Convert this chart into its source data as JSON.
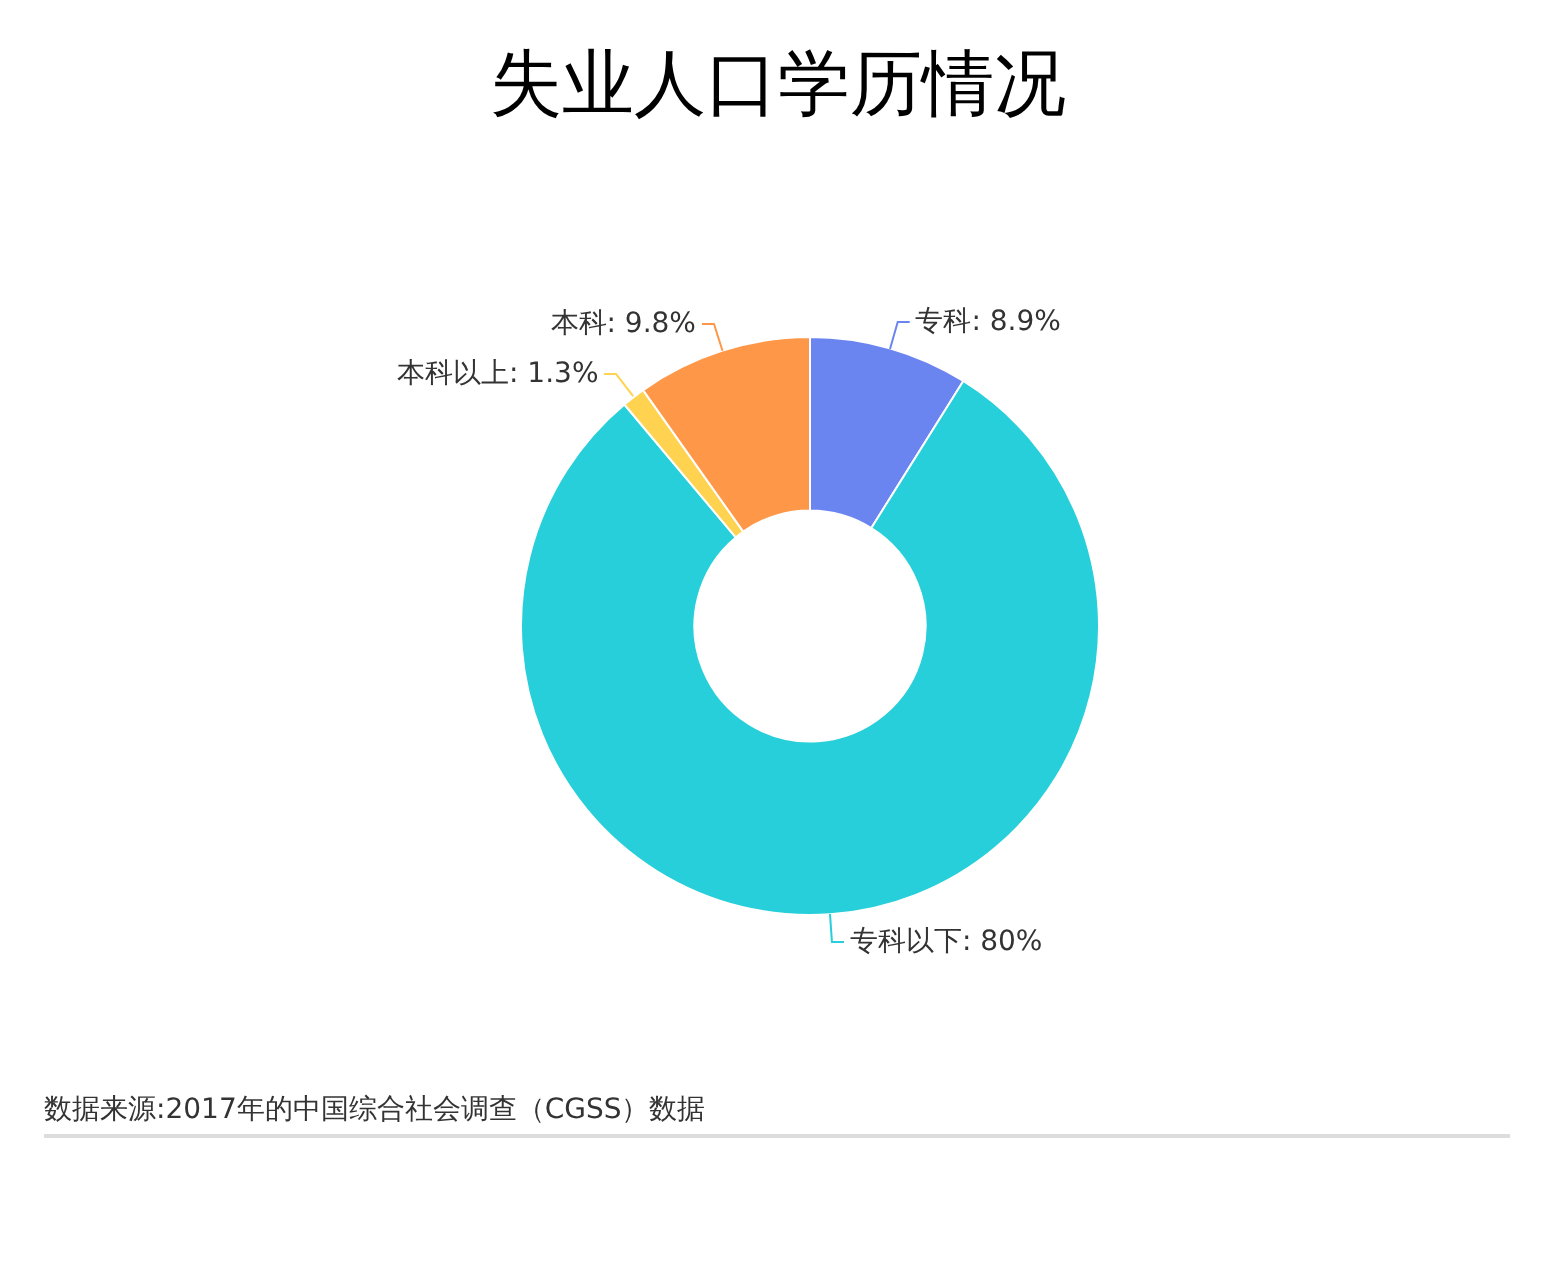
{
  "chart_data": {
    "type": "donut",
    "title": "失业人口学历情况",
    "categories": [
      "专科",
      "专科以下",
      "本科以上",
      "本科"
    ],
    "values": [
      8.9,
      80,
      1.3,
      9.8
    ],
    "value_labels": [
      ": 8.9%",
      ": 80%",
      ": 1.3%",
      ": 9.8%"
    ],
    "colors": [
      "#6b85f0",
      "#26cfd9",
      "#ffd34f",
      "#ff9748"
    ],
    "legend": false,
    "annotations": [
      "数据来源:2017年的中国综合社会调查（CGSS）数据"
    ]
  }
}
